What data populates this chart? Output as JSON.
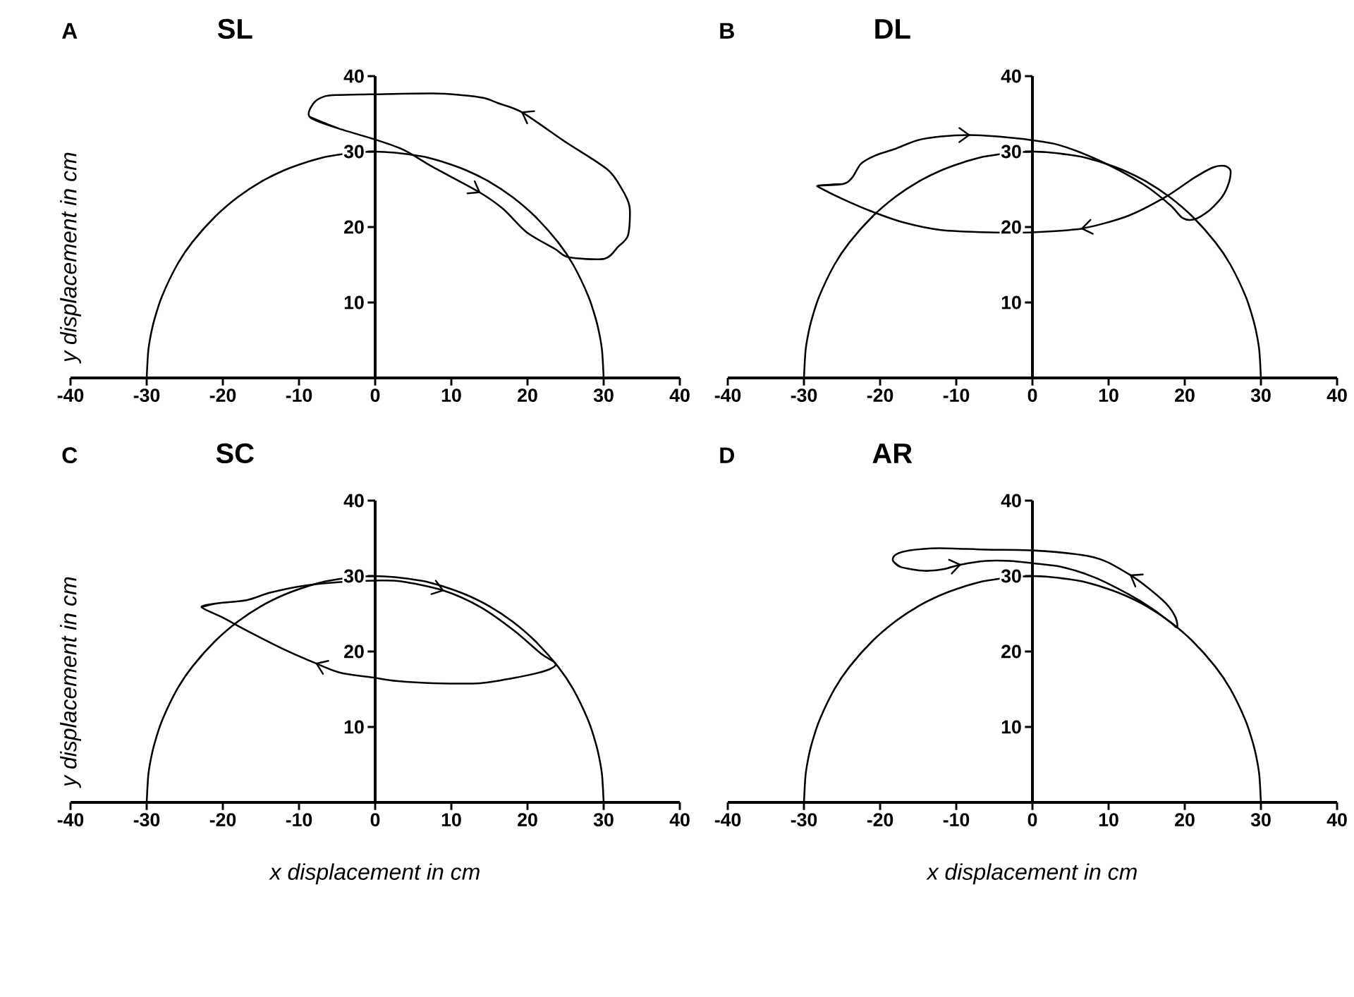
{
  "chart_data": [
    {
      "type": "line",
      "title": "SL",
      "annotations": [
        "A"
      ],
      "ylabel": "y displacement in cm",
      "xlim": [
        -40,
        40
      ],
      "ylim": [
        0,
        40
      ],
      "xticks": [
        -40,
        -30,
        -20,
        -10,
        0,
        10,
        20,
        30,
        40
      ],
      "yticks": [
        10,
        20,
        30,
        40
      ],
      "series": [
        {
          "color": "#000000",
          "x": [
            -30,
            -29.8,
            -29.5,
            -29,
            -28,
            -26,
            -24,
            -21,
            -18,
            -15,
            -12,
            -9,
            -6,
            0,
            6,
            9,
            12,
            15,
            18,
            21,
            24,
            26,
            28,
            29,
            29.5,
            29.8,
            30
          ],
          "values": [
            0,
            3.5,
            5.5,
            7.7,
            10.8,
            15.0,
            18.0,
            21.4,
            24.0,
            26.0,
            27.5,
            28.6,
            29.4,
            30,
            29.4,
            28.6,
            27.5,
            26.0,
            24.0,
            21.4,
            18.0,
            15.0,
            10.8,
            7.7,
            5.5,
            3.5,
            0
          ]
        },
        {
          "color": "#000000",
          "x": [
            -8.6,
            -4.9,
            0,
            3.8,
            7.5,
            13.7,
            16.8,
            19.9,
            23.6,
            25.4,
            30.1,
            31.9,
            33.2,
            33.4,
            32.3,
            30.4,
            24.8,
            19.3,
            16.2,
            14.3,
            11.2,
            7.5,
            0,
            -4.9,
            -6.7,
            -8.1,
            -8.6,
            -4.9
          ],
          "values": [
            34.6,
            33.1,
            31.6,
            30.2,
            28.0,
            24.6,
            22.4,
            19.3,
            17.1,
            16.0,
            15.8,
            17.4,
            18.9,
            22.7,
            25.2,
            27.7,
            31.4,
            35.2,
            36.4,
            37.1,
            37.5,
            37.7,
            37.6,
            37.5,
            37.3,
            36.4,
            34.6,
            33.1
          ]
        }
      ]
    },
    {
      "type": "line",
      "title": "DL",
      "annotations": [
        "B"
      ],
      "xlim": [
        -40,
        40
      ],
      "ylim": [
        0,
        40
      ],
      "xticks": [
        -40,
        -30,
        -20,
        -10,
        0,
        10,
        20,
        30,
        40
      ],
      "yticks": [
        10,
        20,
        30,
        40
      ],
      "series": [
        {
          "color": "#000000",
          "x": [
            -30,
            -29.8,
            -29.5,
            -29,
            -28,
            -26,
            -24,
            -21,
            -18,
            -15,
            -12,
            -9,
            -6,
            0,
            6,
            9,
            12,
            15,
            18,
            21,
            24,
            26,
            28,
            29,
            29.5,
            29.8,
            30
          ],
          "values": [
            0,
            3.5,
            5.5,
            7.7,
            10.8,
            15.0,
            18.0,
            21.4,
            24.0,
            26.0,
            27.5,
            28.6,
            29.4,
            30,
            29.4,
            28.6,
            27.5,
            26.0,
            24.0,
            21.4,
            18.0,
            15.0,
            10.8,
            7.7,
            5.5,
            3.5,
            0
          ]
        },
        {
          "color": "#000000",
          "x": [
            -28.1,
            -24.9,
            -23.7,
            -22.5,
            -20.6,
            -18.2,
            -15.1,
            -12.0,
            -8.3,
            -4.6,
            0,
            3.4,
            7.7,
            11.4,
            15.1,
            18.2,
            19.7,
            21.2,
            23.1,
            24.9,
            25.8,
            26.0,
            25.2,
            23.7,
            21.2,
            17.5,
            12.6,
            6.5,
            0,
            -5.8,
            -12.0,
            -16.9,
            -21.2,
            -24.9,
            -27.7,
            -28.1,
            -24.9
          ],
          "values": [
            25.5,
            25.7,
            26.5,
            28.4,
            29.5,
            30.3,
            31.5,
            32.0,
            32.2,
            32.0,
            31.5,
            30.9,
            29.3,
            27.5,
            25.3,
            22.8,
            21.2,
            21.0,
            22.1,
            24.0,
            25.9,
            27.5,
            28.1,
            27.9,
            26.5,
            24.0,
            21.5,
            19.8,
            19.3,
            19.3,
            19.6,
            20.6,
            22.1,
            23.7,
            25.1,
            25.5,
            25.7
          ]
        }
      ]
    },
    {
      "type": "line",
      "title": "SC",
      "annotations": [
        "C"
      ],
      "xlabel": "x displacement in cm",
      "ylabel": "y displacement in cm",
      "xlim": [
        -40,
        40
      ],
      "ylim": [
        0,
        40
      ],
      "xticks": [
        -40,
        -30,
        -20,
        -10,
        0,
        10,
        20,
        30,
        40
      ],
      "yticks": [
        10,
        20,
        30,
        40
      ],
      "series": [
        {
          "color": "#000000",
          "x": [
            -30,
            -29.8,
            -29.5,
            -29,
            -28,
            -26,
            -24,
            -21,
            -18,
            -15,
            -12,
            -9,
            -6,
            0,
            6,
            9,
            12,
            15,
            18,
            21,
            24,
            26,
            28,
            29,
            29.5,
            29.8,
            30
          ],
          "values": [
            0,
            3.5,
            5.5,
            7.7,
            10.8,
            15.0,
            18.0,
            21.4,
            24.0,
            26.0,
            27.5,
            28.6,
            29.4,
            30,
            29.4,
            28.6,
            27.5,
            26.0,
            24.0,
            21.4,
            18.0,
            15.0,
            10.8,
            7.7,
            5.5,
            3.5,
            0
          ]
        },
        {
          "color": "#000000",
          "x": [
            -22.8,
            -20.6,
            -16.9,
            -13.8,
            -9.5,
            -4.6,
            0,
            3.4,
            8.9,
            13.8,
            18.2,
            21.8,
            23.7,
            22.5,
            18.8,
            13.8,
            7.7,
            2.8,
            0,
            -4.6,
            -7.7,
            -12.0,
            -16.9,
            -20.0,
            -22.8,
            -20.6
          ],
          "values": [
            25.9,
            26.4,
            26.8,
            27.8,
            28.7,
            29.2,
            29.4,
            29.3,
            28.1,
            25.9,
            22.8,
            19.7,
            18.4,
            17.5,
            16.6,
            15.8,
            15.8,
            16.1,
            16.5,
            17.2,
            18.4,
            20.3,
            22.8,
            24.5,
            25.9,
            26.4
          ]
        }
      ]
    },
    {
      "type": "line",
      "title": "AR",
      "annotations": [
        "D"
      ],
      "xlabel": "x displacement in cm",
      "xlim": [
        -40,
        40
      ],
      "ylim": [
        0,
        40
      ],
      "xticks": [
        -40,
        -30,
        -20,
        -10,
        0,
        10,
        20,
        30,
        40
      ],
      "yticks": [
        10,
        20,
        30,
        40
      ],
      "series": [
        {
          "color": "#000000",
          "x": [
            -30,
            -29.8,
            -29.5,
            -29,
            -28,
            -26,
            -24,
            -21,
            -18,
            -15,
            -12,
            -9,
            -6,
            0,
            6,
            9,
            12,
            15,
            18,
            21,
            24,
            26,
            28,
            29,
            29.5,
            29.8,
            30
          ],
          "values": [
            0,
            3.5,
            5.5,
            7.7,
            10.8,
            15.0,
            18.0,
            21.4,
            24.0,
            26.0,
            27.5,
            28.6,
            29.4,
            30,
            29.4,
            28.6,
            27.5,
            26.0,
            24.0,
            21.4,
            18.0,
            15.0,
            10.8,
            7.7,
            5.5,
            3.5,
            0
          ]
        },
        {
          "color": "#000000",
          "x": [
            -18.3,
            -17.3,
            -14.2,
            -11.7,
            -9.5,
            -6.1,
            -3.0,
            0,
            3.9,
            8.2,
            12.6,
            15.7,
            18.2,
            19.0,
            18.8,
            17.6,
            15.1,
            12.9,
            9.5,
            6.4,
            0,
            -6.1,
            -12.3,
            -16.1,
            -18.0,
            -18.3,
            -17.3
          ],
          "values": [
            32.0,
            31.2,
            30.7,
            30.9,
            31.5,
            32.0,
            32.0,
            31.7,
            31.2,
            29.8,
            27.6,
            25.7,
            23.8,
            23.2,
            24.5,
            26.3,
            28.5,
            30.1,
            32.0,
            32.8,
            33.4,
            33.5,
            33.7,
            33.4,
            32.8,
            32.0,
            31.2
          ]
        }
      ]
    }
  ]
}
